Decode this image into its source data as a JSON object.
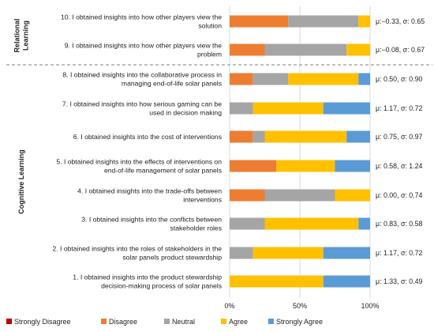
{
  "chart_data": {
    "type": "bar",
    "orientation": "horizontal",
    "stacked": "percent",
    "groups": [
      {
        "label": "Relational\nLearning",
        "items": [
          0,
          1
        ]
      },
      {
        "label": "Cognitive Learning",
        "items": [
          2,
          3,
          4,
          5,
          6,
          7,
          8,
          9
        ]
      }
    ],
    "categories": [
      "10. I obtained insights into how other players view the\nsolution",
      "9. I obtained insights into how other players view the\nproblem",
      "8. I obtained insights into the collaborative process in\nmanaging end-of-life solar panels",
      "7. I obtained insights into how serious gaming can be\nused in decision making",
      "6. I obtained insights into the cost of interventions",
      "5. I obtained insights into the effects of interventions on\nend-of-life management of solar panels",
      "4. I obtained insights into the trade-offs between\ninterventions",
      "3. I obtained insights into the conflicts between\nstakeholder roles",
      "2. I obtained insights into the roles of stakeholders in the\nsolar panels product stewardship",
      "1. I obtained insights into the product stewardship\ndecision-making process of solar panels"
    ],
    "stats": [
      "μ:−0.33, σ: 0.65",
      "μ:−0.08, σ: 0.67",
      "μ: 0.50, σ: 0.90",
      "μ: 1.17, σ: 0.72",
      "μ: 0.75, σ: 0.97",
      "μ: 0.58, σ: 1.24",
      "μ: 0.00, σ: 0.74",
      "μ: 0.83, σ: 0.58",
      "μ: 1.17, σ: 0.72",
      "μ: 1.33, σ: 0.49"
    ],
    "series": [
      {
        "name": "Strongly Disagree",
        "color": "#c00000",
        "values": [
          0,
          0,
          0,
          0,
          0,
          0,
          0,
          0,
          0,
          0
        ]
      },
      {
        "name": "Disagree",
        "color": "#ed7d31",
        "values": [
          41.7,
          25,
          16.7,
          0,
          16.7,
          33.3,
          25,
          0,
          0,
          0
        ]
      },
      {
        "name": "Neutral",
        "color": "#a5a5a5",
        "values": [
          50,
          58.3,
          25,
          16.7,
          8.3,
          0,
          50,
          25,
          16.7,
          0
        ]
      },
      {
        "name": "Agree",
        "color": "#ffc000",
        "values": [
          8.3,
          16.7,
          50,
          50,
          58.3,
          41.7,
          25,
          66.7,
          50,
          66.7
        ]
      },
      {
        "name": "Strongly Agree",
        "color": "#5b9bd5",
        "values": [
          0,
          0,
          8.3,
          33.3,
          16.7,
          25,
          0,
          8.3,
          33.3,
          33.3
        ]
      }
    ],
    "xlim": [
      0,
      100
    ],
    "xticks": [
      "0%",
      "50%",
      "100%"
    ],
    "grid": true,
    "legend": "bottom"
  }
}
